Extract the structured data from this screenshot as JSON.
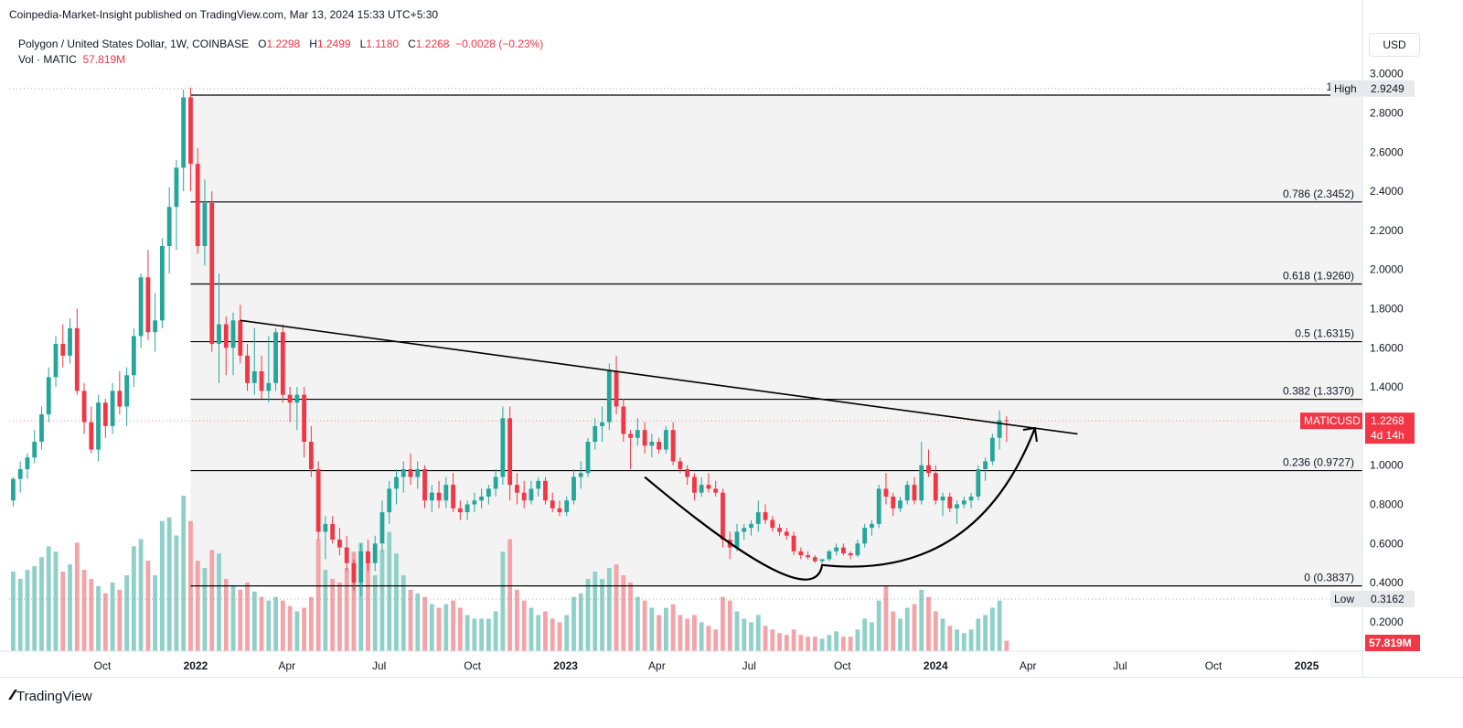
{
  "published": "Coinpedia-Market-Insight published on TradingView.com, Mar 13, 2024 15:33 UTC+5:30",
  "legend": {
    "symbol": "Polygon / United States Dollar, 1W, COINBASE",
    "o_label": "O",
    "o": "1.2298",
    "h_label": "H",
    "h": "1.2499",
    "l_label": "L",
    "l": "1.1180",
    "c_label": "C",
    "c": "1.2268",
    "change": "−0.0028 (−0.23%)",
    "vol_label": "Vol · MATIC",
    "vol": "57.819M"
  },
  "currency_button": "USD",
  "brand": "TradingView",
  "colors": {
    "up": "#26a69a",
    "down": "#f23645",
    "up_vol": "#8fd1c8",
    "down_vol": "#f4a3a8"
  },
  "chart_data": {
    "type": "candlestick",
    "symbol": "MATICUSD",
    "timeframe": "1W",
    "y_ticks": [
      "3.0000",
      "2.8000",
      "2.6000",
      "2.4000",
      "2.2000",
      "2.0000",
      "1.8000",
      "1.6000",
      "1.4000",
      "1.2000",
      "1.0000",
      "0.8000",
      "0.6000",
      "0.4000",
      "0.2000"
    ],
    "ylim": [
      0.05,
      3.05
    ],
    "x_ticks": [
      {
        "date": "2021-10-01",
        "label": "Oct"
      },
      {
        "date": "2022-01-01",
        "label": "2022",
        "bold": true
      },
      {
        "date": "2022-04-01",
        "label": "Apr"
      },
      {
        "date": "2022-07-01",
        "label": "Jul"
      },
      {
        "date": "2022-10-01",
        "label": "Oct"
      },
      {
        "date": "2023-01-01",
        "label": "2023",
        "bold": true
      },
      {
        "date": "2023-04-01",
        "label": "Apr"
      },
      {
        "date": "2023-07-01",
        "label": "Jul"
      },
      {
        "date": "2023-10-01",
        "label": "Oct"
      },
      {
        "date": "2024-01-01",
        "label": "2024",
        "bold": true
      },
      {
        "date": "2024-04-01",
        "label": "Apr"
      },
      {
        "date": "2024-07-01",
        "label": "Jul"
      },
      {
        "date": "2024-10-01",
        "label": "Oct"
      },
      {
        "date": "2025-01-01",
        "label": "2025",
        "bold": true
      }
    ],
    "fib_levels": [
      {
        "ratio": "1",
        "value": 2.8912,
        "label": "1 (2.8"
      },
      {
        "ratio": "0.786",
        "value": 2.3452,
        "label": "0.786 (2.3452)"
      },
      {
        "ratio": "0.618",
        "value": 1.926,
        "label": "0.618 (1.9260)"
      },
      {
        "ratio": "0.5",
        "value": 1.6315,
        "label": "0.5 (1.6315)"
      },
      {
        "ratio": "0.382",
        "value": 1.337,
        "label": "0.382 (1.3370)"
      },
      {
        "ratio": "0.236",
        "value": 0.9727,
        "label": "0.236 (0.9727)"
      },
      {
        "ratio": "0",
        "value": 0.3837,
        "label": "0 (0.3837)"
      }
    ],
    "price_labels": [
      {
        "tag": "High",
        "value": "2.9249",
        "price": 2.9249
      },
      {
        "tag": "MATICUSD",
        "value": "1.2268",
        "sub": "4d 14h",
        "price": 1.2268
      },
      {
        "tag": "Low",
        "value": "0.3162",
        "price": 0.3162
      },
      {
        "tag": "",
        "value": "57.819M",
        "volume": true
      }
    ],
    "trendline": {
      "start": {
        "date": "2022-02-14",
        "price": 1.74
      },
      "end": {
        "date": "2024-05-20",
        "price": 1.16
      }
    },
    "cup_curve": {
      "start": {
        "date": "2023-03-20",
        "price": 0.94
      },
      "bottom": {
        "date": "2023-09-11",
        "price": 0.49
      },
      "end": {
        "date": "2024-04-08",
        "price": 1.19
      }
    },
    "candles": [
      [
        "2021-07-05",
        0.82,
        0.94,
        0.79,
        0.93,
        44
      ],
      [
        "2021-07-12",
        0.93,
        1.02,
        0.86,
        0.98,
        40
      ],
      [
        "2021-07-19",
        0.98,
        1.06,
        0.93,
        1.04,
        45
      ],
      [
        "2021-07-26",
        1.04,
        1.18,
        1.01,
        1.12,
        47
      ],
      [
        "2021-08-02",
        1.12,
        1.3,
        1.08,
        1.26,
        52
      ],
      [
        "2021-08-09",
        1.26,
        1.5,
        1.22,
        1.45,
        58
      ],
      [
        "2021-08-16",
        1.45,
        1.66,
        1.4,
        1.62,
        55
      ],
      [
        "2021-08-23",
        1.62,
        1.72,
        1.5,
        1.56,
        44
      ],
      [
        "2021-08-30",
        1.56,
        1.75,
        1.52,
        1.7,
        48
      ],
      [
        "2021-09-06",
        1.7,
        1.8,
        1.36,
        1.38,
        60
      ],
      [
        "2021-09-13",
        1.38,
        1.42,
        1.16,
        1.22,
        45
      ],
      [
        "2021-09-20",
        1.22,
        1.3,
        1.06,
        1.08,
        40
      ],
      [
        "2021-09-27",
        1.08,
        1.36,
        1.02,
        1.32,
        36
      ],
      [
        "2021-10-04",
        1.32,
        1.34,
        1.14,
        1.2,
        32
      ],
      [
        "2021-10-11",
        1.2,
        1.42,
        1.16,
        1.38,
        38
      ],
      [
        "2021-10-18",
        1.38,
        1.48,
        1.26,
        1.3,
        34
      ],
      [
        "2021-10-25",
        1.3,
        1.5,
        1.2,
        1.46,
        42
      ],
      [
        "2021-11-01",
        1.46,
        1.7,
        1.4,
        1.66,
        58
      ],
      [
        "2021-11-08",
        1.66,
        1.98,
        1.6,
        1.96,
        62
      ],
      [
        "2021-11-15",
        1.96,
        2.1,
        1.64,
        1.68,
        50
      ],
      [
        "2021-11-22",
        1.68,
        1.88,
        1.58,
        1.74,
        42
      ],
      [
        "2021-11-29",
        1.74,
        2.16,
        1.7,
        2.12,
        72
      ],
      [
        "2021-12-06",
        2.12,
        2.42,
        1.98,
        2.32,
        74
      ],
      [
        "2021-12-13",
        2.32,
        2.56,
        2.1,
        2.52,
        64
      ],
      [
        "2021-12-20",
        2.52,
        2.92,
        2.4,
        2.88,
        86
      ],
      [
        "2021-12-27",
        2.88,
        2.93,
        2.4,
        2.54,
        72
      ],
      [
        "2022-01-03",
        2.54,
        2.62,
        2.08,
        2.12,
        50
      ],
      [
        "2022-01-10",
        2.12,
        2.46,
        2.02,
        2.34,
        46
      ],
      [
        "2022-01-17",
        2.34,
        2.4,
        1.58,
        1.62,
        56
      ],
      [
        "2022-01-24",
        1.62,
        1.98,
        1.42,
        1.72,
        54
      ],
      [
        "2022-01-31",
        1.72,
        1.76,
        1.46,
        1.6,
        40
      ],
      [
        "2022-02-07",
        1.6,
        1.78,
        1.46,
        1.74,
        36
      ],
      [
        "2022-02-14",
        1.74,
        1.82,
        1.52,
        1.56,
        34
      ],
      [
        "2022-02-21",
        1.56,
        1.62,
        1.38,
        1.42,
        38
      ],
      [
        "2022-02-28",
        1.42,
        1.7,
        1.36,
        1.48,
        33
      ],
      [
        "2022-03-07",
        1.48,
        1.56,
        1.34,
        1.38,
        30
      ],
      [
        "2022-03-14",
        1.38,
        1.66,
        1.32,
        1.42,
        28
      ],
      [
        "2022-03-21",
        1.42,
        1.7,
        1.38,
        1.68,
        30
      ],
      [
        "2022-03-28",
        1.68,
        1.72,
        1.32,
        1.36,
        28
      ],
      [
        "2022-04-04",
        1.36,
        1.4,
        1.22,
        1.32,
        25
      ],
      [
        "2022-04-11",
        1.32,
        1.4,
        1.18,
        1.36,
        22
      ],
      [
        "2022-04-18",
        1.36,
        1.4,
        1.04,
        1.12,
        24
      ],
      [
        "2022-04-25",
        1.12,
        1.2,
        0.94,
        0.98,
        30
      ],
      [
        "2022-05-02",
        0.98,
        1.02,
        0.62,
        0.66,
        62
      ],
      [
        "2022-05-09",
        0.66,
        0.74,
        0.52,
        0.7,
        45
      ],
      [
        "2022-05-16",
        0.7,
        0.74,
        0.6,
        0.62,
        40
      ],
      [
        "2022-05-23",
        0.62,
        0.68,
        0.54,
        0.58,
        38
      ],
      [
        "2022-05-30",
        0.58,
        0.64,
        0.46,
        0.5,
        46
      ],
      [
        "2022-06-06",
        0.5,
        0.52,
        0.36,
        0.4,
        55
      ],
      [
        "2022-06-13",
        0.4,
        0.6,
        0.33,
        0.56,
        60
      ],
      [
        "2022-06-20",
        0.56,
        0.62,
        0.46,
        0.5,
        50
      ],
      [
        "2022-06-27",
        0.5,
        0.64,
        0.46,
        0.6,
        42
      ],
      [
        "2022-07-04",
        0.6,
        0.82,
        0.56,
        0.76,
        56
      ],
      [
        "2022-07-11",
        0.76,
        0.92,
        0.7,
        0.88,
        66
      ],
      [
        "2022-07-18",
        0.88,
        0.98,
        0.8,
        0.94,
        54
      ],
      [
        "2022-07-25",
        0.94,
        1.02,
        0.86,
        0.98,
        42
      ],
      [
        "2022-08-01",
        0.98,
        1.06,
        0.9,
        0.94,
        34
      ],
      [
        "2022-08-08",
        0.94,
        1.02,
        0.88,
        0.98,
        32
      ],
      [
        "2022-08-15",
        0.98,
        1.0,
        0.78,
        0.82,
        30
      ],
      [
        "2022-08-22",
        0.82,
        0.9,
        0.76,
        0.86,
        26
      ],
      [
        "2022-08-29",
        0.86,
        0.92,
        0.78,
        0.82,
        24
      ],
      [
        "2022-09-05",
        0.82,
        0.94,
        0.78,
        0.9,
        26
      ],
      [
        "2022-09-12",
        0.9,
        0.96,
        0.76,
        0.78,
        28
      ],
      [
        "2022-09-19",
        0.78,
        0.82,
        0.72,
        0.76,
        24
      ],
      [
        "2022-09-26",
        0.76,
        0.82,
        0.72,
        0.8,
        20
      ],
      [
        "2022-10-03",
        0.8,
        0.86,
        0.76,
        0.82,
        18
      ],
      [
        "2022-10-10",
        0.82,
        0.88,
        0.78,
        0.84,
        18
      ],
      [
        "2022-10-17",
        0.84,
        0.9,
        0.8,
        0.88,
        18
      ],
      [
        "2022-10-24",
        0.88,
        0.98,
        0.84,
        0.94,
        22
      ],
      [
        "2022-10-31",
        0.94,
        1.3,
        0.9,
        1.24,
        55
      ],
      [
        "2022-11-07",
        1.24,
        1.3,
        0.82,
        0.9,
        62
      ],
      [
        "2022-11-14",
        0.9,
        0.96,
        0.8,
        0.86,
        34
      ],
      [
        "2022-11-21",
        0.86,
        0.92,
        0.78,
        0.82,
        28
      ],
      [
        "2022-11-28",
        0.82,
        0.92,
        0.8,
        0.88,
        24
      ],
      [
        "2022-12-05",
        0.88,
        0.94,
        0.84,
        0.92,
        20
      ],
      [
        "2022-12-12",
        0.92,
        0.94,
        0.8,
        0.82,
        22
      ],
      [
        "2022-12-19",
        0.82,
        0.86,
        0.76,
        0.78,
        18
      ],
      [
        "2022-12-26",
        0.78,
        0.82,
        0.74,
        0.76,
        16
      ],
      [
        "2023-01-02",
        0.76,
        0.84,
        0.74,
        0.82,
        20
      ],
      [
        "2023-01-09",
        0.82,
        0.98,
        0.8,
        0.94,
        30
      ],
      [
        "2023-01-16",
        0.94,
        1.02,
        0.88,
        0.96,
        32
      ],
      [
        "2023-01-23",
        0.96,
        1.14,
        0.94,
        1.12,
        40
      ],
      [
        "2023-01-30",
        1.12,
        1.24,
        1.08,
        1.2,
        44
      ],
      [
        "2023-02-06",
        1.2,
        1.3,
        1.12,
        1.22,
        40
      ],
      [
        "2023-02-13",
        1.22,
        1.52,
        1.18,
        1.48,
        46
      ],
      [
        "2023-02-20",
        1.48,
        1.56,
        1.26,
        1.3,
        48
      ],
      [
        "2023-02-27",
        1.3,
        1.34,
        1.12,
        1.16,
        42
      ],
      [
        "2023-03-06",
        1.16,
        1.18,
        0.98,
        1.14,
        38
      ],
      [
        "2023-03-13",
        1.14,
        1.24,
        1.1,
        1.18,
        30
      ],
      [
        "2023-03-20",
        1.18,
        1.22,
        1.06,
        1.1,
        28
      ],
      [
        "2023-03-27",
        1.1,
        1.16,
        1.04,
        1.12,
        24
      ],
      [
        "2023-04-03",
        1.12,
        1.14,
        1.06,
        1.08,
        20
      ],
      [
        "2023-04-10",
        1.08,
        1.2,
        1.06,
        1.18,
        24
      ],
      [
        "2023-04-17",
        1.18,
        1.22,
        1.0,
        1.02,
        26
      ],
      [
        "2023-04-24",
        1.02,
        1.04,
        0.96,
        0.98,
        20
      ],
      [
        "2023-05-01",
        0.98,
        1.0,
        0.9,
        0.94,
        18
      ],
      [
        "2023-05-08",
        0.94,
        0.96,
        0.82,
        0.86,
        20
      ],
      [
        "2023-05-15",
        0.86,
        0.94,
        0.84,
        0.9,
        16
      ],
      [
        "2023-05-22",
        0.9,
        0.96,
        0.86,
        0.88,
        14
      ],
      [
        "2023-05-29",
        0.88,
        0.92,
        0.84,
        0.86,
        12
      ],
      [
        "2023-06-05",
        0.86,
        0.88,
        0.58,
        0.62,
        30
      ],
      [
        "2023-06-12",
        0.62,
        0.66,
        0.52,
        0.58,
        28
      ],
      [
        "2023-06-19",
        0.58,
        0.7,
        0.56,
        0.66,
        22
      ],
      [
        "2023-06-26",
        0.66,
        0.7,
        0.62,
        0.68,
        18
      ],
      [
        "2023-07-03",
        0.68,
        0.72,
        0.64,
        0.7,
        16
      ],
      [
        "2023-07-10",
        0.7,
        0.82,
        0.66,
        0.76,
        20
      ],
      [
        "2023-07-17",
        0.76,
        0.8,
        0.7,
        0.72,
        14
      ],
      [
        "2023-07-24",
        0.72,
        0.74,
        0.66,
        0.68,
        12
      ],
      [
        "2023-07-31",
        0.68,
        0.7,
        0.64,
        0.66,
        10
      ],
      [
        "2023-08-07",
        0.66,
        0.68,
        0.62,
        0.64,
        9
      ],
      [
        "2023-08-14",
        0.64,
        0.66,
        0.54,
        0.56,
        12
      ],
      [
        "2023-08-21",
        0.56,
        0.58,
        0.52,
        0.54,
        9
      ],
      [
        "2023-08-28",
        0.54,
        0.56,
        0.52,
        0.53,
        8
      ],
      [
        "2023-09-04",
        0.53,
        0.54,
        0.5,
        0.51,
        8
      ],
      [
        "2023-09-11",
        0.51,
        0.52,
        0.5,
        0.52,
        7
      ],
      [
        "2023-09-18",
        0.52,
        0.57,
        0.51,
        0.56,
        9
      ],
      [
        "2023-09-25",
        0.56,
        0.6,
        0.54,
        0.58,
        11
      ],
      [
        "2023-10-02",
        0.58,
        0.6,
        0.54,
        0.55,
        8
      ],
      [
        "2023-10-09",
        0.55,
        0.56,
        0.52,
        0.54,
        8
      ],
      [
        "2023-10-16",
        0.54,
        0.62,
        0.53,
        0.6,
        12
      ],
      [
        "2023-10-23",
        0.6,
        0.7,
        0.58,
        0.68,
        18
      ],
      [
        "2023-10-30",
        0.68,
        0.72,
        0.64,
        0.7,
        16
      ],
      [
        "2023-11-06",
        0.7,
        0.9,
        0.68,
        0.88,
        28
      ],
      [
        "2023-11-13",
        0.88,
        0.96,
        0.8,
        0.84,
        36
      ],
      [
        "2023-11-20",
        0.84,
        0.86,
        0.74,
        0.78,
        22
      ],
      [
        "2023-11-27",
        0.78,
        0.84,
        0.76,
        0.82,
        18
      ],
      [
        "2023-12-04",
        0.82,
        0.92,
        0.8,
        0.9,
        24
      ],
      [
        "2023-12-11",
        0.9,
        0.94,
        0.8,
        0.82,
        26
      ],
      [
        "2023-12-18",
        0.82,
        1.12,
        0.8,
        1.0,
        34
      ],
      [
        "2023-12-25",
        1.0,
        1.08,
        0.94,
        0.96,
        30
      ],
      [
        "2024-01-01",
        0.96,
        1.0,
        0.8,
        0.82,
        22
      ],
      [
        "2024-01-08",
        0.82,
        0.86,
        0.74,
        0.84,
        18
      ],
      [
        "2024-01-15",
        0.84,
        0.86,
        0.76,
        0.78,
        14
      ],
      [
        "2024-01-22",
        0.78,
        0.82,
        0.7,
        0.8,
        12
      ],
      [
        "2024-01-29",
        0.8,
        0.84,
        0.78,
        0.82,
        10
      ],
      [
        "2024-02-05",
        0.82,
        0.86,
        0.78,
        0.84,
        12
      ],
      [
        "2024-02-12",
        0.84,
        1.0,
        0.82,
        0.98,
        18
      ],
      [
        "2024-02-19",
        0.98,
        1.04,
        0.92,
        1.02,
        20
      ],
      [
        "2024-02-26",
        1.02,
        1.16,
        1.0,
        1.14,
        24
      ],
      [
        "2024-03-04",
        1.14,
        1.28,
        1.08,
        1.23,
        28
      ],
      [
        "2024-03-11",
        1.2298,
        1.2499,
        1.118,
        1.2268,
        5.78
      ]
    ]
  }
}
